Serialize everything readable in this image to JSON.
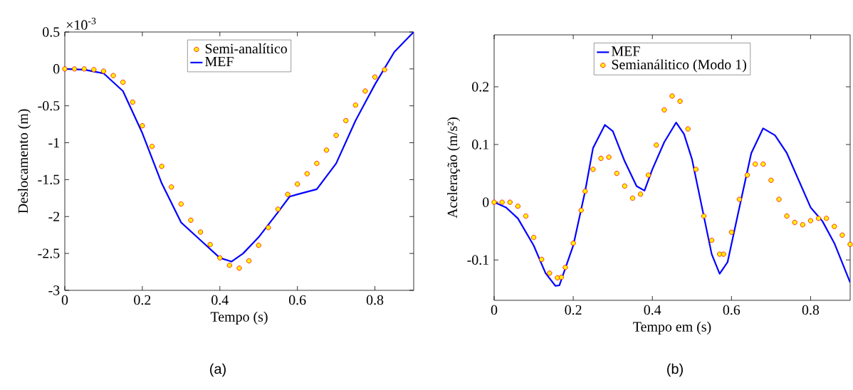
{
  "chart_data": [
    {
      "type": "scatter",
      "xlabel": "Tempo  (s)",
      "ylabel": "Deslocamento (m)",
      "xlim": [
        0,
        0.9
      ],
      "ylim": [
        -3,
        0.5
      ],
      "xticks": [
        0,
        0.2,
        0.4,
        0.6,
        0.8
      ],
      "yticks": [
        -3,
        -2.5,
        -2,
        -1.5,
        -1,
        -0.5,
        0,
        0.5
      ],
      "legend": "top",
      "grid": false,
      "annotations": [
        "×10$^{-3}$",
        "(a)"
      ],
      "series": [
        {
          "name": "Semi-analítico",
          "marker": "circle",
          "color": "#ff0000",
          "x": [
            0,
            0.025,
            0.05,
            0.075,
            0.1,
            0.125,
            0.15,
            0.175,
            0.2,
            0.225,
            0.25,
            0.275,
            0.3,
            0.325,
            0.35,
            0.375,
            0.4,
            0.425,
            0.45,
            0.475,
            0.5,
            0.525,
            0.55,
            0.575,
            0.6,
            0.625,
            0.65,
            0.675,
            0.7,
            0.725,
            0.75,
            0.775,
            0.8,
            0.825
          ],
          "values": [
            0,
            0,
            0,
            -0.01,
            -0.03,
            -0.09,
            -0.18,
            -0.45,
            -0.77,
            -1.05,
            -1.32,
            -1.6,
            -1.83,
            -2.05,
            -2.21,
            -2.38,
            -2.56,
            -2.66,
            -2.7,
            -2.6,
            -2.39,
            -2.15,
            -1.9,
            -1.7,
            -1.56,
            -1.42,
            -1.28,
            -1.1,
            -0.9,
            -0.7,
            -0.49,
            -0.3,
            -0.11,
            -0.01
          ]
        },
        {
          "name": "MEF",
          "type": "line",
          "line_style": "solid",
          "color": "#0000ff",
          "x": [
            0,
            0.05,
            0.1,
            0.15,
            0.2,
            0.25,
            0.3,
            0.35,
            0.4,
            0.43,
            0.46,
            0.5,
            0.55,
            0.58,
            0.6,
            0.65,
            0.7,
            0.75,
            0.8,
            0.85,
            0.9
          ],
          "values": [
            0,
            -0.01,
            -0.06,
            -0.3,
            -0.87,
            -1.55,
            -2.08,
            -2.32,
            -2.56,
            -2.61,
            -2.5,
            -2.28,
            -1.94,
            -1.73,
            -1.7,
            -1.63,
            -1.28,
            -0.7,
            -0.21,
            0.23,
            0.5
          ]
        }
      ]
    },
    {
      "type": "line",
      "xlabel": "Tempo em (s)",
      "ylabel": "Aceleração (m/s²)",
      "xlim": [
        0,
        0.9
      ],
      "ylim": [
        -0.17,
        0.29
      ],
      "xticks": [
        0,
        0.2,
        0.4,
        0.6,
        0.8
      ],
      "yticks": [
        -0.1,
        0,
        0.1,
        0.2
      ],
      "legend": "top",
      "grid": false,
      "annotations": [
        "(b)"
      ],
      "series": [
        {
          "name": "MEF",
          "line_style": "solid",
          "color": "#0000ff",
          "x": [
            0,
            0.03,
            0.06,
            0.1,
            0.13,
            0.155,
            0.165,
            0.2,
            0.23,
            0.25,
            0.28,
            0.3,
            0.33,
            0.36,
            0.38,
            0.4,
            0.43,
            0.46,
            0.48,
            0.5,
            0.53,
            0.55,
            0.57,
            0.59,
            0.62,
            0.65,
            0.68,
            0.71,
            0.74,
            0.77,
            0.8,
            0.83,
            0.86,
            0.9
          ],
          "values": [
            0,
            -0.009,
            -0.028,
            -0.075,
            -0.123,
            -0.145,
            -0.144,
            -0.075,
            0.019,
            0.094,
            0.134,
            0.123,
            0.071,
            0.028,
            0.02,
            0.057,
            0.104,
            0.138,
            0.118,
            0.075,
            -0.024,
            -0.09,
            -0.124,
            -0.104,
            -0.009,
            0.085,
            0.128,
            0.116,
            0.085,
            0.038,
            -0.009,
            -0.033,
            -0.071,
            -0.139
          ]
        },
        {
          "name": "Semianálitico (Modo 1)",
          "type": "scatter",
          "marker": "circle",
          "color": "#ff0000",
          "x": [
            0,
            0.02,
            0.04,
            0.06,
            0.08,
            0.1,
            0.12,
            0.14,
            0.16,
            0.17,
            0.18,
            0.2,
            0.22,
            0.23,
            0.25,
            0.27,
            0.29,
            0.31,
            0.33,
            0.35,
            0.37,
            0.39,
            0.41,
            0.43,
            0.45,
            0.47,
            0.49,
            0.51,
            0.53,
            0.55,
            0.57,
            0.58,
            0.6,
            0.62,
            0.64,
            0.66,
            0.68,
            0.7,
            0.72,
            0.74,
            0.76,
            0.78,
            0.8,
            0.82,
            0.84,
            0.86,
            0.88,
            0.9
          ],
          "values": [
            0,
            0,
            0,
            -0.007,
            -0.024,
            -0.061,
            -0.099,
            -0.123,
            -0.131,
            -0.13,
            -0.113,
            -0.071,
            -0.014,
            0.019,
            0.057,
            0.076,
            0.078,
            0.05,
            0.028,
            0.007,
            0.014,
            0.047,
            0.099,
            0.16,
            0.184,
            0.175,
            0.127,
            0.057,
            -0.024,
            -0.066,
            -0.09,
            -0.09,
            -0.052,
            0.005,
            0.047,
            0.066,
            0.066,
            0.038,
            0.005,
            -0.024,
            -0.035,
            -0.039,
            -0.032,
            -0.028,
            -0.028,
            -0.042,
            -0.057,
            -0.073
          ]
        }
      ]
    }
  ]
}
